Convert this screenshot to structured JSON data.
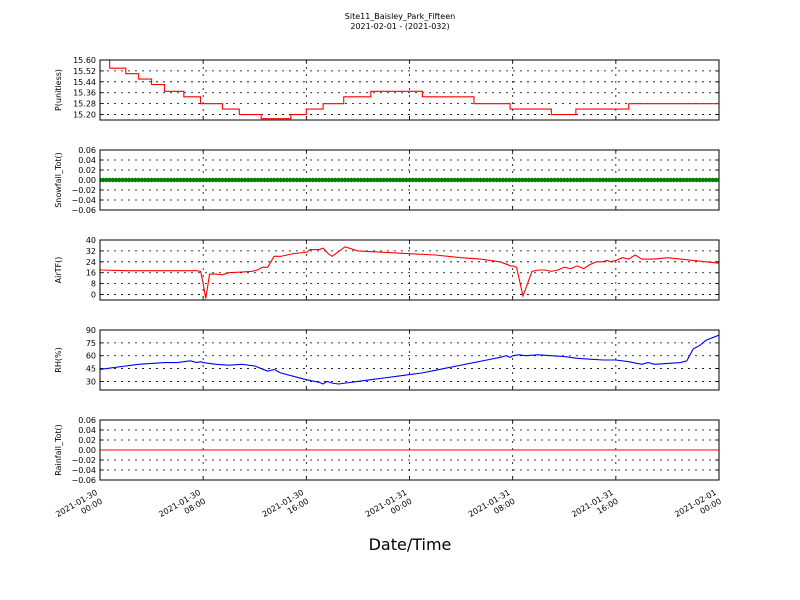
{
  "figure": {
    "title_line1": "Site11_Baisley_Park_Fifteen",
    "title_line2": "2021-02-01 - (2021-032)",
    "xlabel": "Date/Time",
    "x_ticks": [
      {
        "line1": "2021-01-30",
        "line2": "00:00",
        "hour": 0
      },
      {
        "line1": "2021-01-30",
        "line2": "08:00",
        "hour": 8
      },
      {
        "line1": "2021-01-30",
        "line2": "16:00",
        "hour": 16
      },
      {
        "line1": "2021-01-31",
        "line2": "00:00",
        "hour": 24
      },
      {
        "line1": "2021-01-31",
        "line2": "08:00",
        "hour": 32
      },
      {
        "line1": "2021-01-31",
        "line2": "16:00",
        "hour": 40
      },
      {
        "line1": "2021-02-01",
        "line2": "00:00",
        "hour": 48
      }
    ]
  },
  "chart_data": [
    {
      "type": "line",
      "ylabel": "P(unitless)",
      "color": "#ff0000",
      "ylim": [
        15.16,
        15.6
      ],
      "yticks": [
        "15.60",
        "15.52",
        "15.44",
        "15.36",
        "15.28",
        "15.20"
      ],
      "grid": true,
      "x_hours": [
        0.0,
        0.75,
        0.75,
        2.0,
        2.0,
        3.0,
        3.0,
        4.0,
        4.0,
        5.0,
        5.0,
        6.5,
        6.5,
        7.8,
        7.8,
        9.5,
        9.5,
        10.8,
        10.8,
        12.5,
        12.5,
        14.8,
        14.8,
        16.0,
        16.0,
        17.3,
        17.3,
        18.9,
        18.9,
        21.0,
        21.0,
        25.0,
        25.0,
        29.0,
        29.0,
        31.8,
        31.8,
        35.0,
        35.0,
        36.9,
        36.9,
        41.0,
        41.0,
        48.0
      ],
      "values": [
        15.6,
        15.6,
        15.54,
        15.54,
        15.5,
        15.5,
        15.46,
        15.46,
        15.42,
        15.42,
        15.37,
        15.37,
        15.33,
        15.33,
        15.28,
        15.28,
        15.24,
        15.24,
        15.2,
        15.2,
        15.17,
        15.17,
        15.2,
        15.2,
        15.24,
        15.24,
        15.28,
        15.28,
        15.33,
        15.33,
        15.37,
        15.37,
        15.33,
        15.33,
        15.28,
        15.28,
        15.24,
        15.24,
        15.2,
        15.2,
        15.24,
        15.24,
        15.28,
        15.28
      ]
    },
    {
      "type": "scatter",
      "ylabel": "Snowfall_Tot()",
      "color": "#008000",
      "ylim": [
        -0.06,
        0.06
      ],
      "yticks": [
        "0.06",
        "0.04",
        "0.02",
        "0.00",
        "−0.02",
        "−0.04",
        "−0.06"
      ],
      "grid": true,
      "x_range_hours": [
        0,
        48
      ],
      "sample_interval_minutes": 15,
      "constant_value": 0.0
    },
    {
      "type": "line",
      "ylabel": "AirTF()",
      "color": "#ff0000",
      "ylim": [
        -4,
        40
      ],
      "yticks": [
        "40",
        "32",
        "24",
        "16",
        "8",
        "0"
      ],
      "grid": true,
      "x_hours": [
        0.0,
        2.0,
        4.0,
        6.0,
        7.5,
        7.8,
        8.0,
        8.2,
        8.5,
        9.0,
        9.5,
        10.0,
        11.0,
        11.8,
        12.2,
        12.6,
        13.0,
        13.5,
        14.0,
        15.0,
        16.0,
        16.3,
        16.6,
        17.0,
        17.3,
        17.7,
        18.0,
        19.0,
        20.0,
        22.0,
        24.0,
        26.0,
        28.0,
        29.5,
        31.0,
        31.6,
        31.8,
        32.0,
        32.3,
        32.8,
        33.5,
        34.0,
        34.5,
        35.0,
        35.5,
        36.0,
        36.5,
        37.0,
        37.5,
        38.0,
        38.5,
        39.0,
        39.3,
        39.6,
        40.0,
        40.5,
        41.0,
        41.5,
        42.0,
        43.0,
        44.0,
        45.0,
        46.0,
        47.0,
        48.0
      ],
      "values": [
        18,
        17.5,
        17.5,
        17.5,
        17.5,
        17,
        8,
        -3,
        15,
        15,
        14.5,
        16,
        16.5,
        17,
        18,
        20,
        20,
        28,
        28,
        30,
        31,
        33,
        33,
        33,
        34,
        30,
        28,
        35,
        32,
        31,
        30,
        29,
        27,
        26,
        24,
        22,
        21,
        21,
        20,
        -1,
        17,
        18,
        18,
        17,
        18,
        20,
        19,
        21,
        19,
        22,
        24,
        24,
        25,
        24,
        25,
        27,
        26,
        29,
        26,
        26,
        27,
        26,
        25,
        24,
        23
      ]
    },
    {
      "type": "line",
      "ylabel": "RH(%)",
      "color": "#0000ff",
      "ylim": [
        20,
        90
      ],
      "yticks": [
        "90",
        "75",
        "60",
        "45",
        "30"
      ],
      "grid": true,
      "x_hours": [
        0,
        1,
        2,
        3,
        4,
        5,
        6,
        6.5,
        7,
        7.5,
        7.8,
        8,
        9,
        10,
        11,
        12,
        12.5,
        13,
        13.5,
        14,
        15,
        16,
        17,
        17.3,
        17.6,
        18,
        18.5,
        19,
        20,
        21,
        22,
        23,
        24,
        25,
        26,
        27,
        28,
        29,
        30,
        31,
        31.5,
        31.8,
        32,
        32.5,
        33,
        34,
        35,
        36,
        37,
        38,
        39,
        40,
        41,
        42,
        42.5,
        43,
        44,
        45,
        45.5,
        46,
        46.5,
        47,
        48
      ],
      "values": [
        44,
        46,
        48,
        50,
        51,
        52,
        52,
        53,
        54,
        52,
        53,
        52,
        50,
        49,
        50,
        48,
        45,
        42,
        44,
        40,
        36,
        32,
        29,
        27,
        30,
        28,
        27,
        28,
        30,
        32,
        34,
        36,
        38,
        40,
        43,
        46,
        49,
        52,
        55,
        58,
        60,
        58,
        60,
        61,
        60,
        61,
        60,
        59,
        57,
        56,
        55,
        55,
        53,
        50,
        52,
        50,
        51,
        52,
        54,
        68,
        72,
        78,
        84
      ]
    },
    {
      "type": "line",
      "ylabel": "Rainfall_Tot()",
      "color": "#ff0000",
      "ylim": [
        -0.06,
        0.06
      ],
      "yticks": [
        "0.06",
        "0.04",
        "0.02",
        "0.00",
        "−0.02",
        "−0.04",
        "−0.06"
      ],
      "grid": true,
      "x_hours": [
        0,
        48
      ],
      "values": [
        0.0,
        0.0
      ]
    }
  ]
}
